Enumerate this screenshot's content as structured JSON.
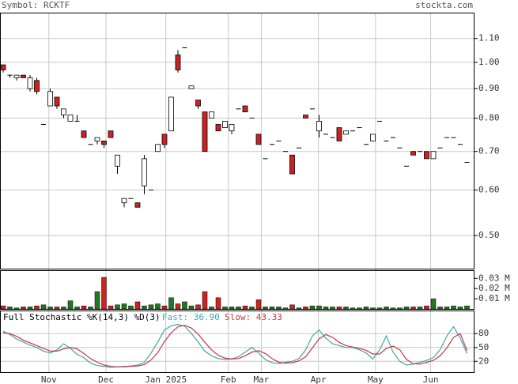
{
  "header": {
    "symbol": "Symbol: RCKTF",
    "site": "stockta.com"
  },
  "chart_data": [
    {
      "type": "candlestick",
      "log_scale": true,
      "grid": true,
      "up_color": "#ffffff",
      "down_color": "#cc2222",
      "x": [
        0,
        1,
        2,
        3,
        4,
        5,
        6,
        7,
        8,
        9,
        10,
        11,
        12,
        13,
        14,
        15,
        16,
        17,
        18,
        19,
        20,
        21,
        22,
        23,
        24,
        25,
        26,
        27,
        28,
        29,
        30,
        31,
        32,
        33,
        34,
        35,
        36,
        37,
        38,
        39,
        40,
        41,
        42,
        43,
        44,
        45,
        46,
        47,
        48,
        49,
        50,
        51,
        52,
        53,
        54,
        55,
        56,
        57,
        58,
        59,
        60,
        61,
        62,
        63,
        64,
        65,
        66,
        67,
        68,
        69
      ],
      "open": [
        0.99,
        0.95,
        0.94,
        0.95,
        0.9,
        0.93,
        0.78,
        0.84,
        0.87,
        0.81,
        0.79,
        0.79,
        0.76,
        0.72,
        0.73,
        0.73,
        0.76,
        0.66,
        0.57,
        0.58,
        0.57,
        0.61,
        0.6,
        0.7,
        0.75,
        0.76,
        1.03,
        1.06,
        0.9,
        0.86,
        0.82,
        0.8,
        0.78,
        0.77,
        0.76,
        0.83,
        0.84,
        0.8,
        0.75,
        0.68,
        0.72,
        0.73,
        0.7,
        0.69,
        0.71,
        0.81,
        0.83,
        0.76,
        0.75,
        0.74,
        0.77,
        0.75,
        0.76,
        0.77,
        0.72,
        0.73,
        0.79,
        0.73,
        0.74,
        0.71,
        0.66,
        0.7,
        0.7,
        0.7,
        0.68,
        0.71,
        0.74,
        0.74,
        0.72,
        0.67
      ],
      "high": [
        0.99,
        0.95,
        0.95,
        0.95,
        0.95,
        0.94,
        0.78,
        0.9,
        0.87,
        0.83,
        0.81,
        0.81,
        0.76,
        0.72,
        0.74,
        0.73,
        0.76,
        0.69,
        0.58,
        0.58,
        0.57,
        0.69,
        0.6,
        0.72,
        0.75,
        0.87,
        1.05,
        1.06,
        0.91,
        0.86,
        0.82,
        0.82,
        0.78,
        0.79,
        0.78,
        0.83,
        0.84,
        0.8,
        0.75,
        0.68,
        0.72,
        0.73,
        0.7,
        0.69,
        0.71,
        0.81,
        0.83,
        0.81,
        0.75,
        0.74,
        0.77,
        0.76,
        0.76,
        0.77,
        0.72,
        0.75,
        0.79,
        0.73,
        0.74,
        0.71,
        0.66,
        0.7,
        0.7,
        0.7,
        0.7,
        0.71,
        0.74,
        0.74,
        0.72,
        0.67
      ],
      "low": [
        0.96,
        0.94,
        0.93,
        0.94,
        0.89,
        0.88,
        0.78,
        0.84,
        0.83,
        0.8,
        0.79,
        0.79,
        0.74,
        0.72,
        0.72,
        0.71,
        0.74,
        0.64,
        0.56,
        0.58,
        0.56,
        0.59,
        0.6,
        0.7,
        0.71,
        0.76,
        0.96,
        1.06,
        0.9,
        0.83,
        0.7,
        0.8,
        0.76,
        0.77,
        0.75,
        0.83,
        0.82,
        0.8,
        0.72,
        0.68,
        0.72,
        0.73,
        0.7,
        0.64,
        0.71,
        0.8,
        0.83,
        0.74,
        0.75,
        0.74,
        0.73,
        0.75,
        0.76,
        0.77,
        0.72,
        0.73,
        0.79,
        0.73,
        0.74,
        0.71,
        0.66,
        0.69,
        0.7,
        0.68,
        0.68,
        0.71,
        0.74,
        0.74,
        0.72,
        0.67
      ],
      "close": [
        0.97,
        0.95,
        0.95,
        0.94,
        0.94,
        0.89,
        0.78,
        0.89,
        0.84,
        0.83,
        0.81,
        0.79,
        0.74,
        0.72,
        0.74,
        0.72,
        0.74,
        0.69,
        0.58,
        0.58,
        0.56,
        0.68,
        0.6,
        0.72,
        0.72,
        0.87,
        0.97,
        1.06,
        0.91,
        0.84,
        0.7,
        0.82,
        0.76,
        0.79,
        0.78,
        0.83,
        0.82,
        0.8,
        0.72,
        0.68,
        0.72,
        0.73,
        0.7,
        0.64,
        0.71,
        0.8,
        0.83,
        0.79,
        0.75,
        0.74,
        0.73,
        0.76,
        0.76,
        0.77,
        0.72,
        0.75,
        0.79,
        0.73,
        0.74,
        0.71,
        0.66,
        0.69,
        0.7,
        0.68,
        0.7,
        0.71,
        0.74,
        0.74,
        0.72,
        0.67
      ],
      "xlim": [
        -0.47,
        70.12
      ],
      "xticks": [
        {
          "value": 6.8,
          "label": "Nov"
        },
        {
          "value": 15.3,
          "label": "Dec"
        },
        {
          "value": 24.2,
          "label": "Jan 2025"
        },
        {
          "value": 33.5,
          "label": "Feb"
        },
        {
          "value": 38.4,
          "label": "Mar"
        },
        {
          "value": 46.9,
          "label": "Apr"
        },
        {
          "value": 55.4,
          "label": "May"
        },
        {
          "value": 63.6,
          "label": "Jun"
        }
      ],
      "ylim": [
        0.438,
        1.22
      ],
      "yticks": [
        {
          "value": 1.1,
          "label": "1.10"
        },
        {
          "value": 1.0,
          "label": "1.00"
        },
        {
          "value": 0.9,
          "label": "0.90"
        },
        {
          "value": 0.8,
          "label": "0.80"
        },
        {
          "value": 0.7,
          "label": "0.70"
        },
        {
          "value": 0.6,
          "label": "0.60"
        },
        {
          "value": 0.5,
          "label": "0.50"
        }
      ]
    },
    {
      "type": "bar",
      "grid": false,
      "up_color": "#227722",
      "down_color": "#cc2222",
      "values": [
        0.003,
        0.002,
        0.001,
        0.002,
        0.002,
        0.003,
        0.004,
        0.002,
        0.002,
        0.002,
        0.008,
        0.002,
        0.003,
        0.002,
        0.017,
        0.031,
        0.003,
        0.004,
        0.005,
        0.003,
        0.007,
        0.003,
        0.004,
        0.005,
        0.003,
        0.011,
        0.005,
        0.007,
        0.003,
        0.004,
        0.017,
        0.002,
        0.011,
        0.002,
        0.002,
        0.002,
        0.003,
        0.002,
        0.009,
        0.002,
        0.002,
        0.002,
        0.001,
        0.004,
        0.001,
        0.002,
        0.003,
        0.003,
        0.002,
        0.002,
        0.002,
        0.002,
        0.001,
        0.001,
        0.002,
        0.001,
        0.001,
        0.002,
        0.001,
        0.001,
        0.002,
        0.002,
        0.002,
        0.003,
        0.01,
        0.002,
        0.002,
        0.003,
        0.002,
        0.003
      ],
      "ylim": [
        0,
        0.038
      ],
      "yticks": [
        {
          "value": 0.03,
          "label": "0.03 M"
        },
        {
          "value": 0.02,
          "label": "0.02 M"
        },
        {
          "value": 0.01,
          "label": "0.01 M"
        }
      ]
    },
    {
      "type": "line",
      "title": "Full Stochastic %K(14,3) %D(3)",
      "grid": true,
      "series": [
        {
          "name": "Fast: 36.90",
          "color": "#3fa7a7",
          "values": [
            85,
            78,
            68,
            62,
            55,
            50,
            42,
            38,
            45,
            58,
            48,
            35,
            28,
            16,
            11,
            9,
            7,
            8,
            9,
            10,
            12,
            18,
            38,
            62,
            88,
            97,
            100,
            96,
            80,
            62,
            42,
            32,
            26,
            24,
            25,
            30,
            40,
            50,
            38,
            24,
            17,
            15,
            18,
            20,
            26,
            45,
            75,
            88,
            70,
            58,
            54,
            50,
            50,
            45,
            38,
            25,
            45,
            75,
            40,
            20,
            12,
            14,
            18,
            22,
            28,
            45,
            75,
            95,
            70,
            36.9
          ]
        },
        {
          "name": "Slow: 43.33",
          "color": "#cc3344",
          "values": [
            82,
            80,
            74,
            66,
            60,
            54,
            48,
            42,
            42,
            47,
            50,
            47,
            37,
            26,
            18,
            12,
            9,
            8,
            8,
            9,
            10,
            13,
            23,
            39,
            63,
            82,
            95,
            98,
            92,
            79,
            61,
            45,
            33,
            27,
            25,
            26,
            32,
            40,
            43,
            37,
            26,
            18,
            16,
            17,
            21,
            30,
            49,
            69,
            78,
            72,
            61,
            54,
            51,
            48,
            44,
            36,
            36,
            48,
            53,
            45,
            24,
            15,
            14,
            18,
            22,
            32,
            49,
            72,
            80,
            43.33
          ]
        }
      ],
      "ylim": [
        0,
        130
      ],
      "yticks": [
        80,
        50,
        20
      ]
    }
  ]
}
